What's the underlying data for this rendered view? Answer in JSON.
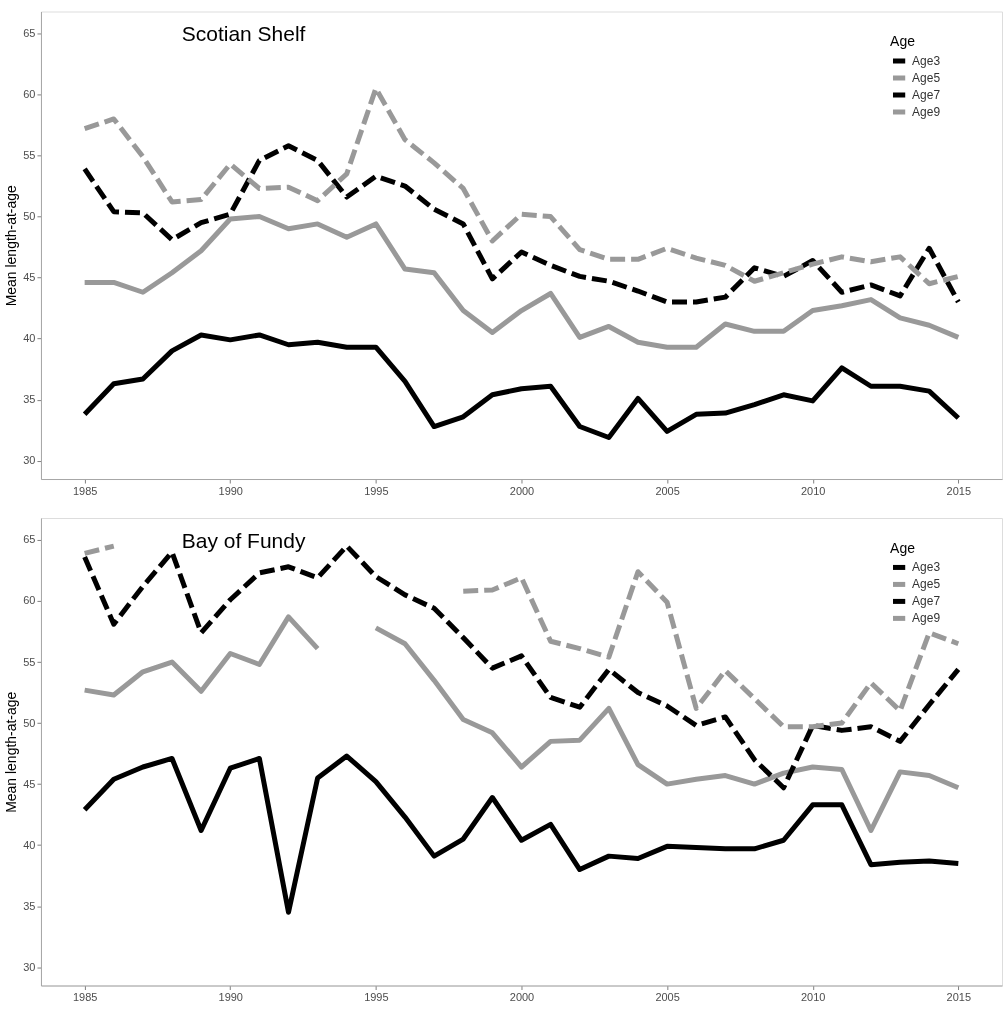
{
  "chart_data": [
    {
      "type": "line",
      "title": "Scotian Shelf",
      "ylabel": "Mean length-at-age",
      "legend_title": "Age",
      "legend": "top right",
      "x": [
        1985,
        1986,
        1987,
        1988,
        1989,
        1990,
        1991,
        1992,
        1993,
        1994,
        1995,
        1996,
        1997,
        1998,
        1999,
        2000,
        2001,
        2002,
        2003,
        2004,
        2005,
        2006,
        2007,
        2008,
        2009,
        2010,
        2011,
        2012,
        2013,
        2014,
        2015
      ],
      "xlim": [
        1983.5,
        2016.5
      ],
      "xticks": [
        1985,
        1990,
        1995,
        2000,
        2005,
        2010,
        2015
      ],
      "ylim": [
        28.5,
        66.8
      ],
      "yticks": [
        30,
        35,
        40,
        45,
        50,
        55,
        60,
        65
      ],
      "series": [
        {
          "name": "Age3",
          "color": "#000000",
          "line_style": "solid",
          "values": [
            33.8,
            36.3,
            36.7,
            39.0,
            40.3,
            39.9,
            40.3,
            39.5,
            39.7,
            39.3,
            39.3,
            36.5,
            32.8,
            33.6,
            35.4,
            35.9,
            36.1,
            32.8,
            31.9,
            35.1,
            32.4,
            33.8,
            33.9,
            34.6,
            35.4,
            34.9,
            37.6,
            36.1,
            36.1,
            35.7,
            33.5
          ]
        },
        {
          "name": "Age5",
          "color": "#999999",
          "line_style": "solid",
          "values": [
            44.6,
            44.6,
            43.8,
            45.4,
            47.2,
            49.8,
            50.0,
            49.0,
            49.4,
            48.3,
            49.4,
            45.7,
            45.4,
            42.3,
            40.5,
            42.3,
            43.7,
            40.1,
            41.0,
            39.7,
            39.3,
            39.3,
            41.2,
            40.6,
            40.6,
            42.3,
            42.7,
            43.2,
            41.7,
            41.1,
            40.1
          ]
        },
        {
          "name": "Age7",
          "color": "#000000",
          "line_style": "dashed",
          "values": [
            53.9,
            50.4,
            50.3,
            48.1,
            49.5,
            50.2,
            54.6,
            55.8,
            54.6,
            51.6,
            53.3,
            52.5,
            50.6,
            49.4,
            44.9,
            47.1,
            46.0,
            45.1,
            44.7,
            43.9,
            43.0,
            43.0,
            43.4,
            45.8,
            45.1,
            46.4,
            43.8,
            44.4,
            43.5,
            47.4,
            43.0
          ]
        },
        {
          "name": "Age9",
          "color": "#999999",
          "line_style": "dashed",
          "values": [
            57.2,
            58.0,
            54.9,
            51.2,
            51.4,
            54.3,
            52.3,
            52.4,
            51.3,
            53.5,
            60.5,
            56.3,
            54.4,
            52.3,
            48.0,
            50.2,
            50.0,
            47.3,
            46.5,
            46.5,
            47.4,
            46.6,
            46.0,
            44.7,
            45.4,
            46.1,
            46.7,
            46.3,
            46.7,
            44.5,
            45.1
          ]
        }
      ]
    },
    {
      "type": "line",
      "title": "Bay of Fundy",
      "ylabel": "Mean length-at-age",
      "legend_title": "Age",
      "legend": "top right",
      "x": [
        1985,
        1986,
        1987,
        1988,
        1989,
        1990,
        1991,
        1992,
        1993,
        1994,
        1995,
        1996,
        1997,
        1998,
        1999,
        2000,
        2001,
        2002,
        2003,
        2004,
        2005,
        2006,
        2007,
        2008,
        2009,
        2010,
        2011,
        2012,
        2013,
        2014,
        2015
      ],
      "xlim": [
        1983.5,
        2016.5
      ],
      "xticks": [
        1985,
        1990,
        1995,
        2000,
        2005,
        2010,
        2015
      ],
      "ylim": [
        28.5,
        66.8
      ],
      "yticks": [
        30,
        35,
        40,
        45,
        50,
        55,
        60,
        65
      ],
      "series": [
        {
          "name": "Age3",
          "color": "#000000",
          "line_style": "solid",
          "values": [
            42.9,
            45.4,
            46.4,
            47.1,
            41.2,
            46.3,
            47.1,
            34.5,
            45.5,
            47.3,
            45.2,
            42.3,
            39.1,
            40.5,
            43.9,
            40.4,
            41.7,
            38.0,
            39.1,
            38.9,
            39.9,
            39.8,
            39.7,
            39.7,
            40.4,
            43.3,
            43.3,
            38.4,
            38.6,
            38.7,
            38.5
          ]
        },
        {
          "name": "Age5",
          "color": "#999999",
          "line_style": "solid",
          "values": [
            52.7,
            52.3,
            54.2,
            55.0,
            52.6,
            55.7,
            54.8,
            58.7,
            56.1,
            null,
            57.8,
            56.5,
            53.5,
            50.3,
            49.2,
            46.4,
            48.5,
            48.6,
            51.2,
            46.6,
            45.0,
            45.4,
            45.7,
            45.0,
            45.9,
            46.4,
            46.2,
            41.2,
            46.0,
            45.7,
            44.7
          ]
        },
        {
          "name": "Age7",
          "color": "#000000",
          "line_style": "dashed",
          "values": [
            63.6,
            58.1,
            61.2,
            64.0,
            57.4,
            60.1,
            62.3,
            62.8,
            61.9,
            64.5,
            62.0,
            60.5,
            59.4,
            57.0,
            54.5,
            55.5,
            52.1,
            51.3,
            54.4,
            52.5,
            51.4,
            49.8,
            50.5,
            47.0,
            44.7,
            49.8,
            49.4,
            49.7,
            48.5,
            51.5,
            54.4
          ]
        },
        {
          "name": "Age9",
          "color": "#999999",
          "line_style": "dashed",
          "values": [
            63.9,
            64.5,
            null,
            null,
            null,
            null,
            null,
            null,
            null,
            null,
            null,
            null,
            null,
            60.8,
            60.9,
            61.9,
            56.7,
            56.1,
            55.4,
            62.4,
            59.9,
            51.2,
            54.3,
            52.0,
            49.7,
            49.7,
            50.0,
            53.3,
            51.0,
            57.4,
            56.5
          ]
        }
      ]
    }
  ]
}
